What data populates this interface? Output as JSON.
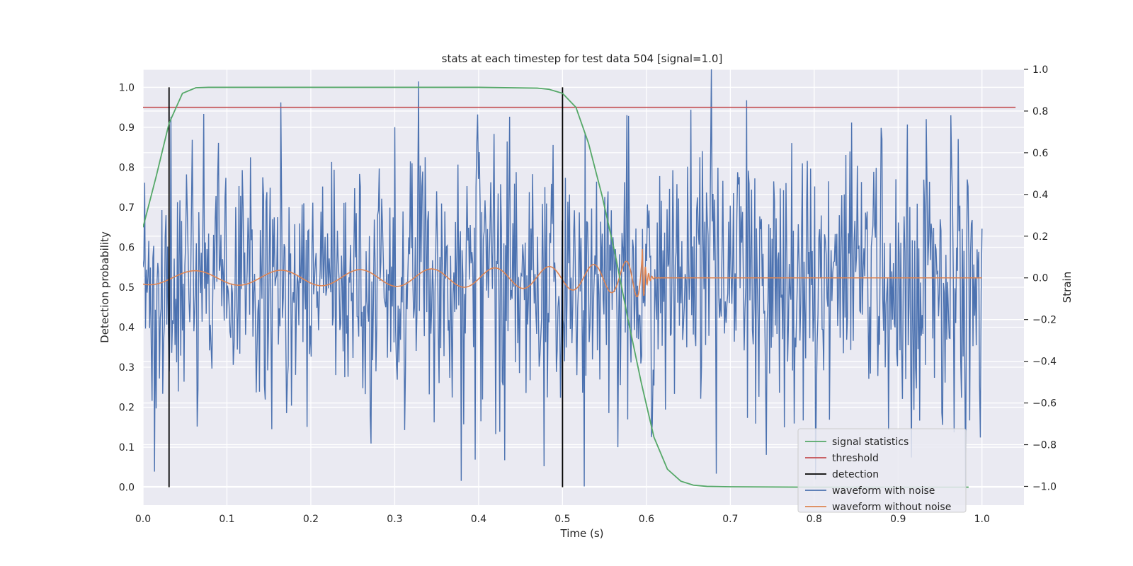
{
  "chart_data": {
    "type": "line",
    "title": "stats at each timestep for test data 504 [signal=1.0]",
    "xlabel": "Time (s)",
    "ylabel_left": "Detection probability",
    "ylabel_right": "Strain",
    "xlim": [
      0.0,
      1.05
    ],
    "ylim_left": [
      -0.045,
      1.045
    ],
    "ylim_right": [
      -1.09,
      1.0
    ],
    "x_ticks": [
      "0.0",
      "0.1",
      "0.2",
      "0.3",
      "0.4",
      "0.5",
      "0.6",
      "0.7",
      "0.8",
      "0.9",
      "1.0"
    ],
    "y_ticks_left": [
      "0.0",
      "0.1",
      "0.2",
      "0.3",
      "0.4",
      "0.5",
      "0.6",
      "0.7",
      "0.8",
      "0.9",
      "1.0"
    ],
    "y_ticks_right": [
      "−1.0",
      "−0.8",
      "−0.6",
      "−0.4",
      "−0.2",
      "0.0",
      "0.2",
      "0.4",
      "0.6",
      "0.8",
      "1.0"
    ],
    "grid": true,
    "legend_position": "lower-right",
    "colors": {
      "signal": "#55a868",
      "threshold": "#c44e52",
      "detection": "#000000",
      "noisy": "#4c72b0",
      "clean": "#dd8452",
      "background": "#eaeaf2",
      "grid": "#ffffff"
    },
    "series": [
      {
        "name": "signal statistics",
        "axis": "left",
        "x": [
          0.0,
          0.016,
          0.031,
          0.047,
          0.063,
          0.078,
          0.1,
          0.2,
          0.3,
          0.4,
          0.47,
          0.484,
          0.5,
          0.516,
          0.531,
          0.547,
          0.563,
          0.578,
          0.594,
          0.609,
          0.625,
          0.641,
          0.656,
          0.672,
          0.7,
          0.8,
          0.9,
          0.984
        ],
        "y": [
          0.65,
          0.78,
          0.91,
          0.985,
          0.999,
          1.0,
          1.0,
          1.0,
          1.0,
          1.0,
          0.998,
          0.995,
          0.985,
          0.95,
          0.86,
          0.73,
          0.58,
          0.42,
          0.26,
          0.125,
          0.045,
          0.015,
          0.005,
          0.002,
          0.001,
          0.0,
          0.0,
          0.0
        ]
      },
      {
        "name": "threshold",
        "axis": "left",
        "x": [
          0.0,
          1.04
        ],
        "y": [
          0.95,
          0.95
        ]
      },
      {
        "name": "detection",
        "axis": "left",
        "x": [
          0.031,
          0.5
        ],
        "y_range": [
          0.0,
          1.0
        ]
      },
      {
        "name": "waveform with noise",
        "axis": "right",
        "x_range": [
          0.0,
          1.0
        ],
        "n_points": 1024,
        "min": -1.0,
        "max": 1.0
      },
      {
        "name": "waveform without noise",
        "axis": "right",
        "x_range": [
          0.0,
          1.0
        ],
        "merger_time": 0.595,
        "base_amplitude": 0.033,
        "peak_amplitude": 0.23
      }
    ]
  }
}
